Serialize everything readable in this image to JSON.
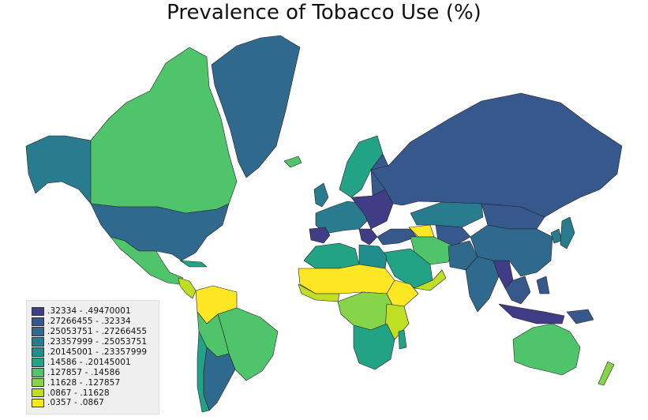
{
  "map": {
    "title": "Prevalence of Tobacco Use (%)"
  },
  "legend": {
    "placement": "bottom-left",
    "items": [
      {
        "label": ".32334 - .49470001",
        "color": "#403c86"
      },
      {
        "label": ".27266455 - .32334",
        "color": "#37588d"
      },
      {
        "label": ".25053751 - .27266455",
        "color": "#2f6a8e"
      },
      {
        "label": ".23357999 - .25053751",
        "color": "#297b8e"
      },
      {
        "label": ".20145001 - .23357999",
        "color": "#228d8d"
      },
      {
        "label": ".14586 - .20145001",
        "color": "#22a385"
      },
      {
        "label": ".127857 - .14586",
        "color": "#4fc46a"
      },
      {
        "label": ".11628 - .127857",
        "color": "#86d449"
      },
      {
        "label": ".0867 - .11628",
        "color": "#bfdf25"
      },
      {
        "label": ".0357 - .0867",
        "color": "#fde725"
      }
    ]
  }
}
